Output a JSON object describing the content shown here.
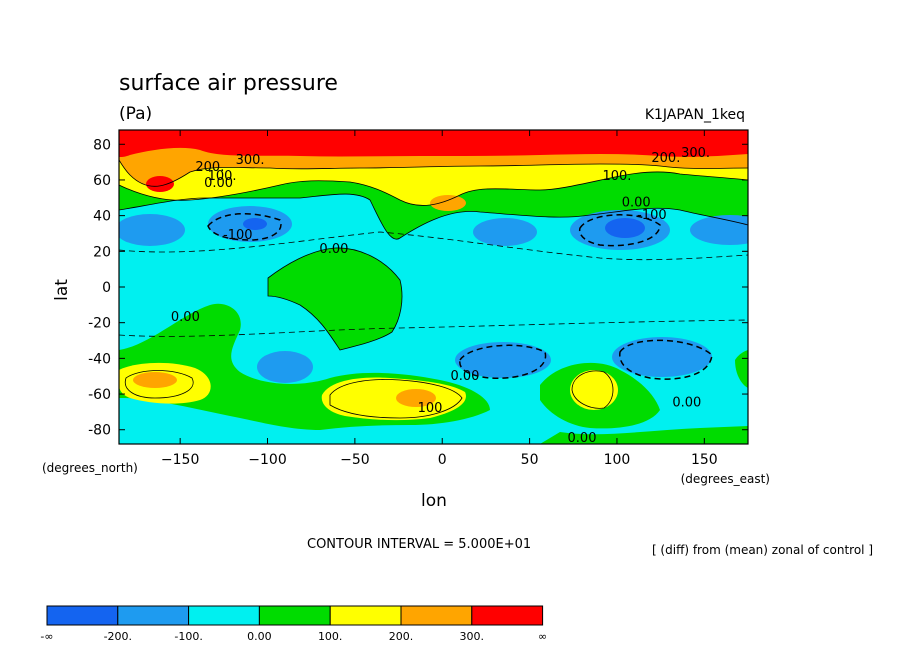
{
  "chart_data": {
    "type": "contour",
    "title": "surface air pressure",
    "units": "(Pa)",
    "run_label": "K1JAPAN_1keq",
    "xlabel": "lon",
    "ylabel": "lat",
    "x_units": "(degrees_east)",
    "y_units": "(degrees_north)",
    "xlim": [
      -185,
      175
    ],
    "ylim": [
      -88,
      88
    ],
    "x_ticks": [
      -150,
      -100,
      -50,
      0,
      50,
      100,
      150
    ],
    "x_tick_labels": [
      "-150",
      "-100",
      "-50",
      "0",
      "50",
      "100",
      "150"
    ],
    "y_ticks": [
      80,
      60,
      40,
      20,
      0,
      -20,
      -40,
      -60,
      -80
    ],
    "y_tick_labels": [
      "80",
      "60",
      "40",
      "20",
      "0",
      "-20",
      "-40",
      "-60",
      "-80"
    ],
    "contour_interval_text": "CONTOUR INTERVAL = 5.000E+01",
    "contour_labels": [
      {
        "text": "300.",
        "lon": -110,
        "lat": 69
      },
      {
        "text": "200.",
        "lon": -133,
        "lat": 65
      },
      {
        "text": "100.",
        "lon": -126,
        "lat": 60
      },
      {
        "text": "0.00",
        "lon": -128,
        "lat": 56
      },
      {
        "text": "-100",
        "lon": -117,
        "lat": 27
      },
      {
        "text": "0.00",
        "lon": -62,
        "lat": 19
      },
      {
        "text": "0.00",
        "lon": -147,
        "lat": -19
      },
      {
        "text": "0.00",
        "lon": 13,
        "lat": -52
      },
      {
        "text": "100",
        "lon": -7,
        "lat": -70
      },
      {
        "text": "0.00",
        "lon": 80,
        "lat": -87
      },
      {
        "text": "0.00",
        "lon": 140,
        "lat": -67
      },
      {
        "text": "100.",
        "lon": 100,
        "lat": 60
      },
      {
        "text": "0.00",
        "lon": 111,
        "lat": 45
      },
      {
        "text": "-100",
        "lon": 120,
        "lat": 38
      },
      {
        "text": "200.",
        "lon": 128,
        "lat": 70
      },
      {
        "text": "300.",
        "lon": 145,
        "lat": 73
      }
    ],
    "annotation": "[ (diff) from (mean) zonal of control ]",
    "colorbar": {
      "colors": [
        "#1464f0",
        "#1e9bf0",
        "#00f0f0",
        "#00dc00",
        "#ffff00",
        "#ffa500",
        "#ff0000"
      ],
      "labels": [
        "-∞",
        "-200.",
        "-100.",
        "0.00",
        "100.",
        "200.",
        "300.",
        "∞"
      ]
    },
    "fields": {
      "zonal_bands": [
        {
          "lat_from": 88,
          "lat_to": 78,
          "level": "300."
        },
        {
          "lat_from": 78,
          "lat_to": 70,
          "level": "200."
        },
        {
          "lat_from": 70,
          "lat_to": 58,
          "level": "100."
        },
        {
          "lat_from": 58,
          "lat_to": 48,
          "level": "0.00"
        },
        {
          "lat_from": 48,
          "lat_to": -30,
          "level": "-100."
        },
        {
          "lat_from": -30,
          "lat_to": -88,
          "level": "-100."
        }
      ]
    }
  }
}
